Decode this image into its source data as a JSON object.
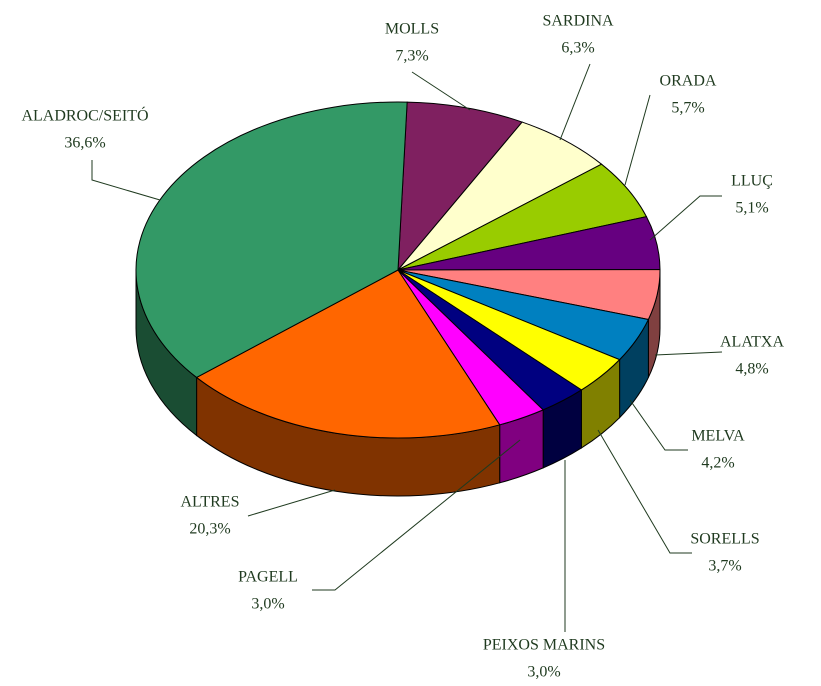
{
  "chart_data": {
    "type": "pie3d",
    "categories": [
      "MOLLS",
      "SARDINA",
      "ORADA",
      "LLUÇ",
      "ALATXA",
      "MELVA",
      "SORELLS",
      "PEIXOS MARINS",
      "PAGELL",
      "ALTRES",
      "ALADROC/SEITÓ"
    ],
    "values": [
      7.3,
      6.3,
      5.7,
      5.1,
      4.8,
      4.2,
      3.7,
      3.0,
      3.0,
      20.3,
      36.6
    ],
    "value_labels": [
      "7,3%",
      "6,3%",
      "5,7%",
      "5,1%",
      "4,8%",
      "4,2%",
      "3,7%",
      "3,0%",
      "3,0%",
      "20,3%",
      "36,6%"
    ],
    "colors": [
      "#7f2060",
      "#ffffcc",
      "#99cc00",
      "#660080",
      "#ff8080",
      "#0080c0",
      "#ffff00",
      "#000080",
      "#ff00ff",
      "#ff6600",
      "#339966"
    ]
  }
}
